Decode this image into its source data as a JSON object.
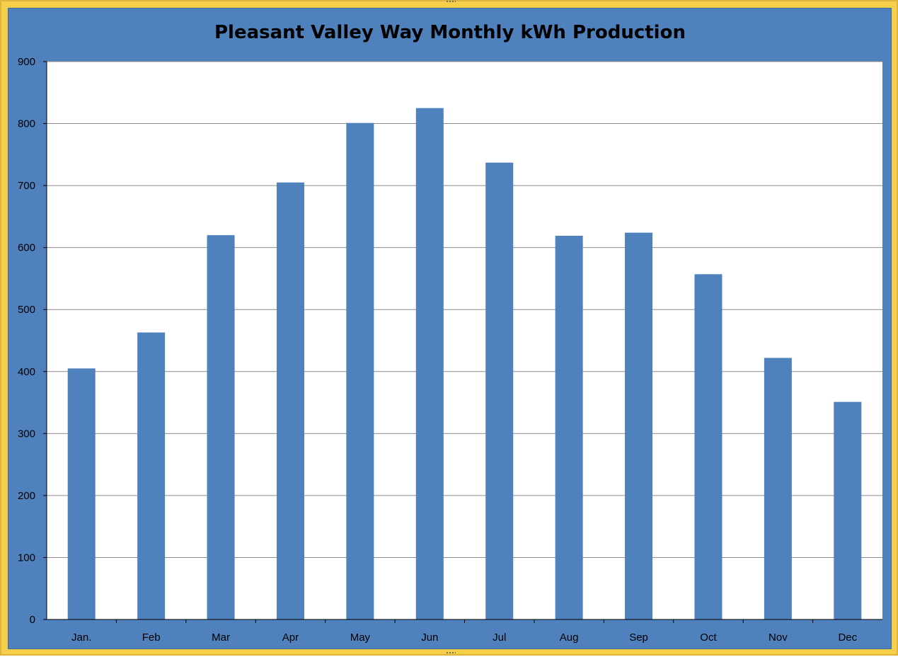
{
  "chart_data": {
    "type": "bar",
    "title": "Pleasant Valley Way Monthly kWh Production",
    "categories": [
      "Jan.",
      "Feb",
      "Mar",
      "Apr",
      "May",
      "Jun",
      "Jul",
      "Aug",
      "Sep",
      "Oct",
      "Nov",
      "Dec"
    ],
    "values": [
      405,
      463,
      620,
      705,
      801,
      825,
      737,
      619,
      624,
      557,
      422,
      351
    ],
    "ylim": [
      0,
      900
    ],
    "yticks": [
      0,
      100,
      200,
      300,
      400,
      500,
      600,
      700,
      800,
      900
    ],
    "xlabel": "",
    "ylabel": "",
    "grid": true,
    "legend": "none",
    "colors": {
      "bar": "#4f81bd",
      "plot_background": "#ffffff",
      "chart_background": "#4f81bd",
      "border": "#f6cf4a",
      "gridline": "#8c8c8c",
      "text": "#000000"
    }
  }
}
